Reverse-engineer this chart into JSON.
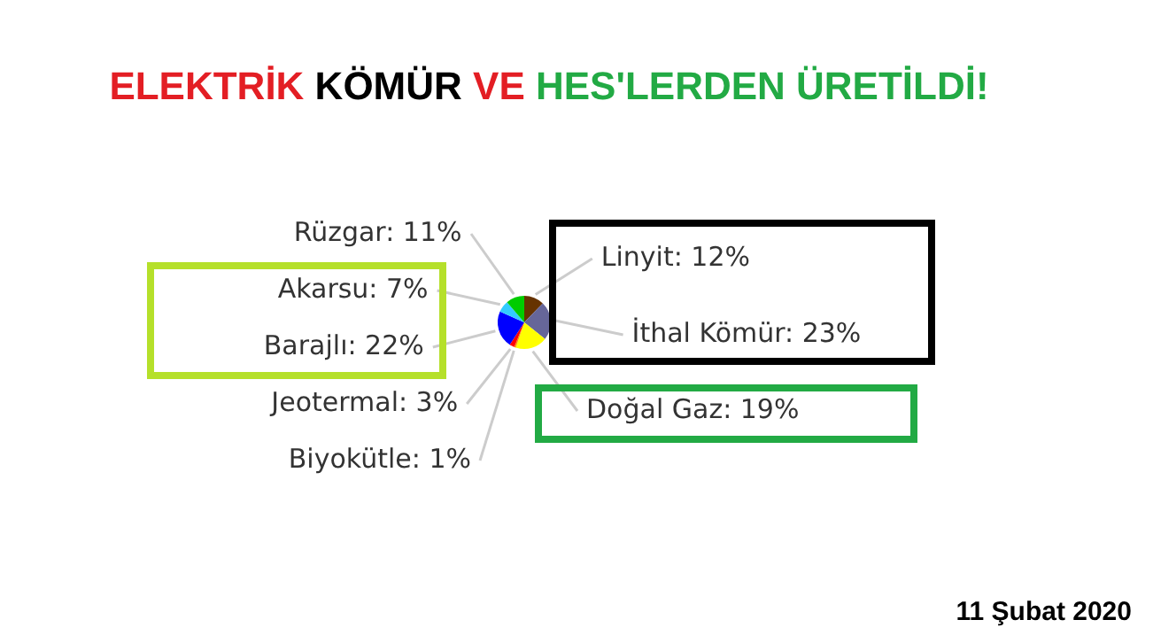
{
  "chart_data": {
    "type": "pie",
    "title": "ELEKTRİK KÖMÜR VE HES'LERDEN ÜRETİLDİ!",
    "categories": [
      "Linyit",
      "İthal Kömür",
      "Doğal Gaz",
      "Biyokütle",
      "Jeotermal",
      "Barajlı",
      "Akarsu",
      "Rüzgar"
    ],
    "values": [
      12,
      23,
      19,
      1,
      3,
      22,
      7,
      11
    ],
    "value_labels": [
      "12%",
      "23%",
      "19%",
      "1%",
      "3%",
      "22%",
      "7%",
      "11%"
    ],
    "colors": [
      "#663300",
      "#666699",
      "#ffff00",
      "#ff9900",
      "#ff0000",
      "#0000ff",
      "#33ccff",
      "#00cc00"
    ],
    "legend": false,
    "annotations": [
      "11 Şubat 2020"
    ]
  }
}
